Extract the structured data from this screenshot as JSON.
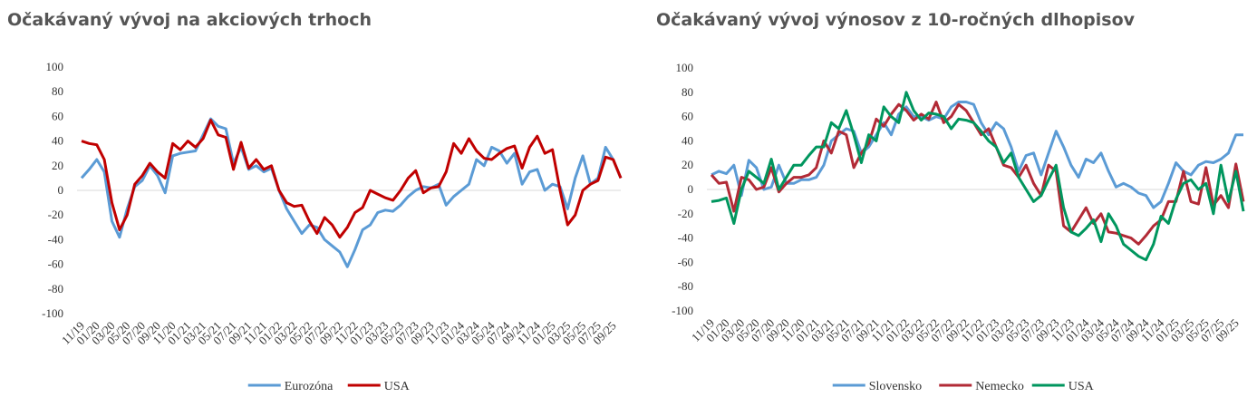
{
  "chart_data": [
    {
      "type": "line",
      "title": "Očakávaný vývoj na akciových trhoch",
      "categories": [
        "11/19",
        null,
        "01/20",
        null,
        "03/20",
        null,
        "05/20",
        null,
        "07/20",
        null,
        "09/20",
        null,
        "11/20",
        null,
        "01/21",
        null,
        "03/21",
        null,
        "05/21",
        null,
        "07/21",
        null,
        "09/21",
        null,
        "11/21",
        null,
        "01/22",
        null,
        "03/22",
        null,
        "05/22",
        null,
        "07/22",
        null,
        "09/22",
        null,
        "11/22",
        null,
        "01/23",
        null,
        "03/23",
        null,
        "05/23",
        null,
        "07/23",
        null,
        "09/23",
        null,
        "11/23",
        null,
        "01/24",
        null,
        "03/24",
        null,
        "05/24",
        null,
        "07/24",
        null,
        "09/24",
        null,
        "11/24",
        null,
        "01/25",
        null,
        "03/25",
        null,
        "05/25",
        null,
        "07/25",
        null,
        "09/25",
        null
      ],
      "series": [
        {
          "name": "Eurozóna",
          "color": "#5b9bd5",
          "values": [
            10,
            17,
            25,
            15,
            -25,
            -38,
            -15,
            3,
            8,
            20,
            12,
            -2,
            28,
            30,
            31,
            32,
            45,
            58,
            52,
            50,
            22,
            35,
            17,
            20,
            15,
            18,
            0,
            -15,
            -25,
            -35,
            -28,
            -30,
            -40,
            -45,
            -50,
            -62,
            -48,
            -32,
            -28,
            -18,
            -16,
            -17,
            -12,
            -5,
            0,
            3,
            2,
            5,
            -12,
            -5,
            0,
            5,
            25,
            20,
            35,
            32,
            22,
            30,
            5,
            15,
            17,
            0,
            5,
            3,
            -15,
            10,
            28,
            5,
            10,
            35,
            25,
            10
          ]
        },
        {
          "name": "USA",
          "color": "#c00000",
          "values": [
            40,
            38,
            37,
            25,
            -10,
            -32,
            -20,
            5,
            12,
            22,
            15,
            10,
            38,
            33,
            40,
            35,
            42,
            57,
            45,
            43,
            17,
            39,
            18,
            25,
            17,
            20,
            0,
            -10,
            -13,
            -12,
            -25,
            -35,
            -22,
            -28,
            -38,
            -30,
            -18,
            -14,
            0,
            -3,
            -6,
            -8,
            0,
            10,
            16,
            -2,
            2,
            3,
            15,
            38,
            30,
            42,
            32,
            26,
            25,
            30,
            34,
            36,
            18,
            35,
            44,
            30,
            33,
            0,
            -28,
            -20,
            0,
            5,
            8,
            27,
            25,
            10
          ]
        }
      ],
      "ylim": [
        -100,
        100
      ],
      "yticks": [
        -100,
        -80,
        -60,
        -40,
        -20,
        0,
        20,
        40,
        60,
        80,
        100
      ],
      "legend": "bottom"
    },
    {
      "type": "line",
      "title": "Očakávaný vývoj výnosov z 10-ročných dlhopisov",
      "categories": [
        "11/19",
        null,
        "01/20",
        null,
        "03/20",
        null,
        "05/20",
        null,
        "07/20",
        null,
        "09/20",
        null,
        "11/20",
        null,
        "01/21",
        null,
        "03/21",
        null,
        "05/21",
        null,
        "07/21",
        null,
        "09/21",
        null,
        "11/21",
        null,
        "01/22",
        null,
        "03/22",
        null,
        "05/22",
        null,
        "07/22",
        null,
        "09/22",
        null,
        "11/22",
        null,
        "01/23",
        null,
        "03/23",
        null,
        "05/23",
        null,
        "07/23",
        null,
        "09/23",
        null,
        "11/23",
        null,
        "01/24",
        null,
        "03/24",
        null,
        "05/24",
        null,
        "07/24",
        null,
        "09/24",
        null,
        "11/24",
        null,
        "01/25",
        null,
        "03/25",
        null,
        "05/25",
        null,
        "07/25",
        null,
        "09/25",
        null
      ],
      "series": [
        {
          "name": "Slovensko",
          "color": "#5b9bd5",
          "values": [
            12,
            15,
            13,
            20,
            -5,
            24,
            18,
            0,
            2,
            20,
            5,
            5,
            8,
            8,
            10,
            20,
            40,
            45,
            50,
            48,
            30,
            35,
            45,
            55,
            45,
            62,
            68,
            60,
            60,
            57,
            60,
            58,
            68,
            72,
            72,
            70,
            55,
            45,
            55,
            50,
            35,
            15,
            28,
            30,
            12,
            30,
            48,
            35,
            20,
            10,
            25,
            22,
            30,
            15,
            2,
            5,
            2,
            -3,
            -5,
            -15,
            -10,
            5,
            22,
            15,
            12,
            20,
            23,
            22,
            25,
            30,
            45,
            45
          ]
        },
        {
          "name": "Nemecko",
          "color": "#b22a36",
          "values": [
            12,
            5,
            6,
            -18,
            10,
            8,
            0,
            2,
            18,
            -2,
            5,
            10,
            10,
            12,
            18,
            40,
            30,
            48,
            45,
            18,
            30,
            38,
            58,
            52,
            62,
            70,
            65,
            57,
            62,
            58,
            72,
            55,
            60,
            70,
            65,
            55,
            45,
            50,
            35,
            20,
            18,
            10,
            20,
            5,
            -5,
            20,
            15,
            -30,
            -35,
            -25,
            -15,
            -28,
            -20,
            -35,
            -36,
            -38,
            -40,
            -45,
            -38,
            -30,
            -25,
            -10,
            -10,
            15,
            -10,
            -12,
            18,
            -13,
            -5,
            -15,
            21,
            -10
          ]
        },
        {
          "name": "USA",
          "color": "#00965e",
          "values": [
            -10,
            -9,
            -7,
            -28,
            0,
            15,
            10,
            5,
            25,
            0,
            10,
            20,
            20,
            28,
            35,
            35,
            55,
            50,
            65,
            45,
            22,
            45,
            40,
            68,
            60,
            55,
            80,
            65,
            57,
            63,
            62,
            60,
            50,
            58,
            57,
            55,
            48,
            40,
            35,
            22,
            30,
            10,
            0,
            -10,
            -5,
            8,
            20,
            -15,
            -35,
            -38,
            -32,
            -25,
            -43,
            -20,
            -30,
            -45,
            -50,
            -55,
            -58,
            -45,
            -22,
            -28,
            -8,
            5,
            8,
            0,
            5,
            -20,
            20,
            -10,
            15,
            -18
          ]
        }
      ],
      "ylim": [
        -100,
        100
      ],
      "yticks": [
        -100,
        -80,
        -60,
        -40,
        -20,
        0,
        20,
        40,
        60,
        80,
        100
      ],
      "legend": "bottom"
    }
  ]
}
